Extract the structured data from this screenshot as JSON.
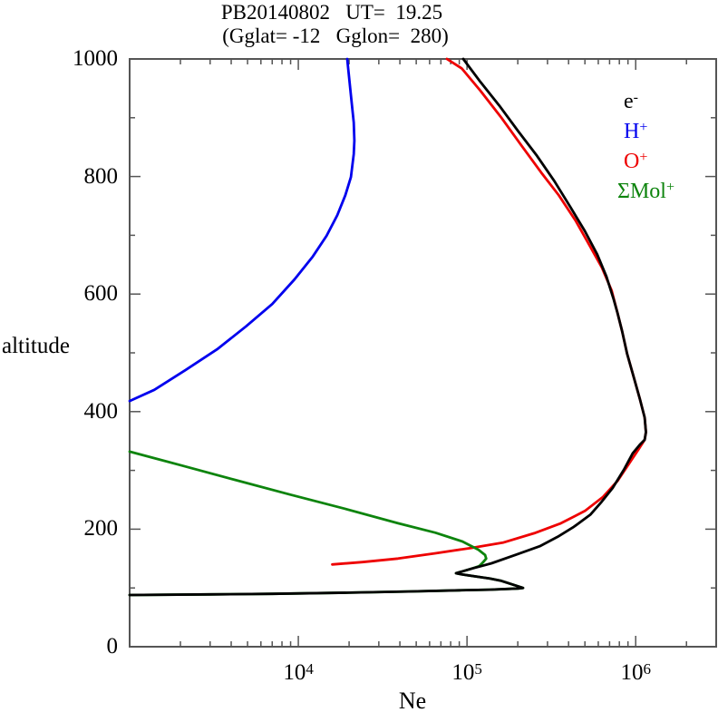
{
  "title": {
    "line1": "PB20140802   UT=  19.25",
    "line2": "(Gglat= -12   Gglon=  280)"
  },
  "axes": {
    "x": {
      "label": "Ne",
      "scale": "log",
      "min": 1000,
      "max": 3000000,
      "tick_labels": [
        {
          "base": "10",
          "exp": "4",
          "value": 10000
        },
        {
          "base": "10",
          "exp": "5",
          "value": 100000
        },
        {
          "base": "10",
          "exp": "6",
          "value": 1000000
        }
      ]
    },
    "y": {
      "label": "altitude",
      "min": 0,
      "max": 1000,
      "major_step": 200,
      "minor_step": 100,
      "tick_labels": [
        {
          "text": "0",
          "value": 0
        },
        {
          "text": "200",
          "value": 200
        },
        {
          "text": "400",
          "value": 400
        },
        {
          "text": "600",
          "value": 600
        },
        {
          "text": "800",
          "value": 800
        },
        {
          "text": "1000",
          "value": 1000
        }
      ]
    }
  },
  "legend": {
    "items": [
      {
        "base": "e",
        "sup": "-",
        "color": "#000000"
      },
      {
        "base": "H",
        "sup": "+",
        "color": "#0000ee"
      },
      {
        "base": "O",
        "sup": "+",
        "color": "#ee0000"
      },
      {
        "base": "ΣMol",
        "sup": "+",
        "color": "#0d840d"
      }
    ]
  },
  "colors": {
    "electron": "#000000",
    "hydrogen_ion": "#0000ee",
    "oxygen_ion": "#ee0000",
    "molecular_ions": "#0d840d",
    "axis": "#555555"
  },
  "chart_data": {
    "type": "line",
    "title": "PB20140802 UT= 19.25 (Gglat= -12 Gglon= 280)",
    "xlabel": "Ne",
    "ylabel": "altitude",
    "x_scale": "log",
    "xlim": [
      1000,
      3000000
    ],
    "ylim": [
      0,
      1000
    ],
    "grid": false,
    "legend_position": "upper right inside",
    "point_format": "[Ne_cm3, altitude_km]",
    "series": [
      {
        "name": "O+",
        "color": "#ee0000",
        "segments": [
          [
            [
              15900,
              140
            ],
            [
              24000,
              144
            ],
            [
              39000,
              150
            ],
            [
              65000,
              159
            ],
            [
              106000,
              168
            ],
            [
              163000,
              177
            ],
            [
              250000,
              193
            ],
            [
              360000,
              210
            ],
            [
              500000,
              231
            ],
            [
              640000,
              255
            ],
            [
              780000,
              282
            ],
            [
              920000,
              313
            ],
            [
              1040000,
              336
            ],
            [
              1130000,
              352
            ],
            [
              1150000,
              365
            ],
            [
              1130000,
              390
            ],
            [
              1060000,
              421
            ],
            [
              970000,
              460
            ],
            [
              890000,
              498
            ],
            [
              830000,
              537
            ],
            [
              780000,
              568
            ],
            [
              720000,
              606
            ],
            [
              630000,
              645
            ],
            [
              530000,
              684
            ],
            [
              440000,
              725
            ],
            [
              350000,
              768
            ],
            [
              275000,
              807
            ],
            [
              210000,
              853
            ],
            [
              160000,
              900
            ],
            [
              120000,
              946
            ],
            [
              93000,
              984
            ],
            [
              76000,
              1000
            ]
          ]
        ]
      },
      {
        "name": "ΣMol+",
        "color": "#0d840d",
        "segments": [
          [
            [
              1000,
              332
            ],
            [
              2000,
              309
            ],
            [
              4200,
              284
            ],
            [
              8900,
              259
            ],
            [
              18700,
              235
            ],
            [
              39000,
              210
            ],
            [
              65000,
              194
            ],
            [
              94000,
              179
            ],
            [
              117000,
              165
            ],
            [
              128000,
              156
            ],
            [
              130000,
              150
            ],
            [
              124000,
              143
            ],
            [
              118000,
              137
            ]
          ],
          [
            [
              1000,
              88
            ],
            [
              3000,
              89
            ],
            [
              7000,
              90
            ],
            [
              20000,
              92
            ],
            [
              45000,
              94
            ],
            [
              90000,
              96
            ],
            [
              136000,
              97
            ],
            [
              200000,
              99
            ],
            [
              215000,
              100
            ],
            [
              160000,
              112
            ],
            [
              136000,
              116
            ],
            [
              93000,
              123
            ],
            [
              86000,
              125
            ],
            [
              107000,
              133
            ],
            [
              118000,
              137
            ]
          ]
        ]
      },
      {
        "name": "H+",
        "color": "#0000ee",
        "segments": [
          [
            [
              1000,
              418
            ],
            [
              1400,
              437
            ],
            [
              2150,
              471
            ],
            [
              3300,
              506
            ],
            [
              4900,
              545
            ],
            [
              7000,
              583
            ],
            [
              9500,
              625
            ],
            [
              12200,
              664
            ],
            [
              14700,
              699
            ],
            [
              17000,
              734
            ],
            [
              19000,
              768
            ],
            [
              20500,
              799
            ],
            [
              21300,
              838
            ],
            [
              21500,
              861
            ],
            [
              21300,
              892
            ],
            [
              20500,
              938
            ],
            [
              19500,
              1000
            ]
          ]
        ]
      },
      {
        "name": "e-",
        "color": "#000000",
        "segments": [
          [
            [
              1000,
              88
            ],
            [
              3000,
              89
            ],
            [
              7000,
              90
            ],
            [
              20000,
              92
            ],
            [
              45000,
              94
            ],
            [
              90000,
              96
            ],
            [
              136000,
              97
            ],
            [
              200000,
              99
            ],
            [
              215000,
              100
            ],
            [
              160000,
              112
            ],
            [
              136000,
              116
            ],
            [
              93000,
              123
            ],
            [
              86000,
              125
            ],
            [
              107000,
              133
            ],
            [
              121000,
              137
            ],
            [
              140000,
              142
            ],
            [
              197000,
              157
            ],
            [
              270000,
              171
            ],
            [
              345000,
              187
            ],
            [
              430000,
              204
            ],
            [
              540000,
              225
            ],
            [
              630000,
              247
            ],
            [
              730000,
              270
            ],
            [
              850000,
              301
            ],
            [
              960000,
              329
            ],
            [
              1060000,
              344
            ],
            [
              1130000,
              352
            ],
            [
              1150000,
              365
            ],
            [
              1130000,
              390
            ],
            [
              1060000,
              421
            ],
            [
              970000,
              460
            ],
            [
              890000,
              498
            ],
            [
              830000,
              537
            ],
            [
              780000,
              568
            ],
            [
              740000,
              591
            ],
            [
              670000,
              630
            ],
            [
              590000,
              668
            ],
            [
              500000,
              707
            ],
            [
              410000,
              748
            ],
            [
              330000,
              792
            ],
            [
              260000,
              835
            ],
            [
              200000,
              878
            ],
            [
              155000,
              921
            ],
            [
              120000,
              961
            ],
            [
              95000,
              1000
            ]
          ]
        ]
      }
    ]
  }
}
